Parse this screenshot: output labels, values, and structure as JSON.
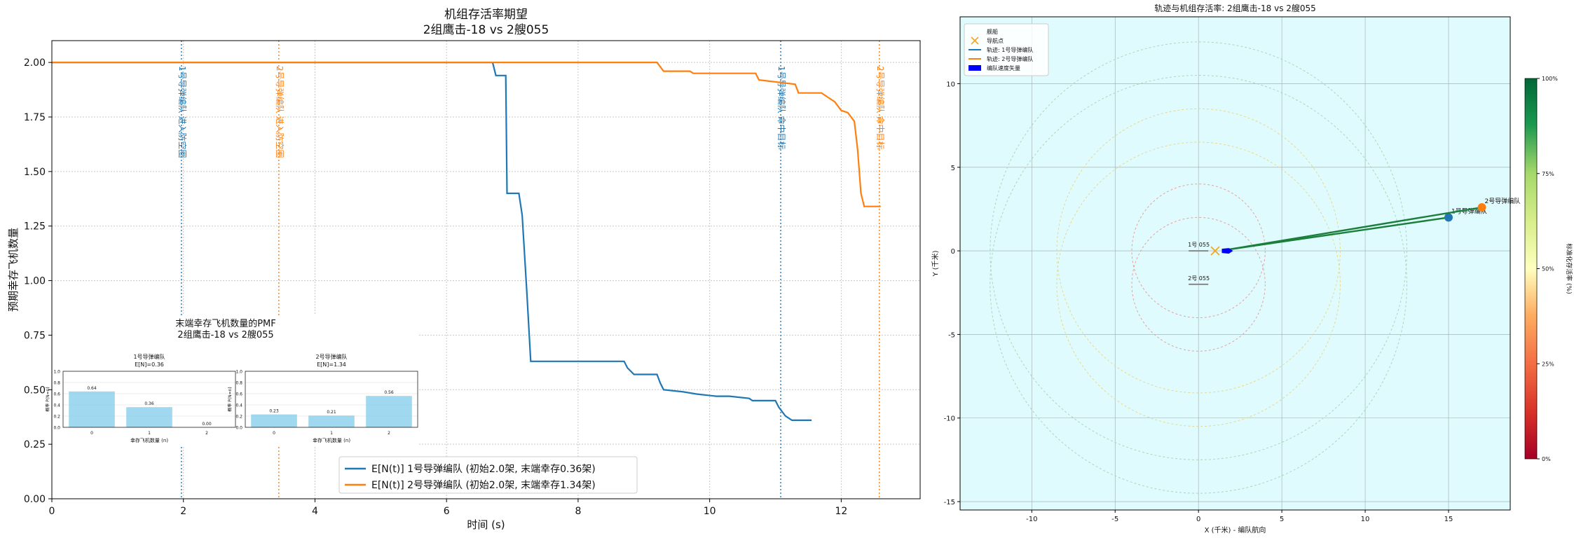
{
  "chart_data": [
    {
      "type": "line",
      "title": "机组存活率期望",
      "subtitle": "2组鹰击-18 vs 2艘055",
      "xlabel": "时间 (s)",
      "ylabel": "预期幸存飞机数量",
      "xlim": [
        0,
        13.2
      ],
      "ylim": [
        0,
        2.1
      ],
      "xticks": [
        0,
        2,
        4,
        6,
        8,
        10,
        12
      ],
      "yticks": [
        0.0,
        0.25,
        0.5,
        0.75,
        1.0,
        1.25,
        1.5,
        1.75,
        2.0
      ],
      "grid": true,
      "legend_placement": "lower-center",
      "series": [
        {
          "name": "E[N(t)] 1号导弹编队 (初始2.0架, 末端幸存0.36架)",
          "color": "#1f77b4",
          "x": [
            0,
            6.7,
            6.75,
            6.9,
            6.92,
            7.1,
            7.15,
            7.22,
            7.28,
            7.35,
            8.7,
            8.75,
            8.85,
            9.2,
            9.25,
            9.3,
            9.6,
            9.8,
            10.1,
            10.3,
            10.6,
            10.65,
            11.0,
            11.05,
            11.15,
            11.25,
            11.35,
            11.55
          ],
          "y": [
            2.0,
            2.0,
            1.94,
            1.94,
            1.4,
            1.4,
            1.3,
            0.95,
            0.63,
            0.63,
            0.63,
            0.6,
            0.57,
            0.57,
            0.53,
            0.5,
            0.49,
            0.48,
            0.47,
            0.47,
            0.46,
            0.45,
            0.45,
            0.42,
            0.38,
            0.36,
            0.36,
            0.36
          ]
        },
        {
          "name": "E[N(t)] 2号导弹编队 (初始2.0架, 末端幸存1.34架)",
          "color": "#ff7f0e",
          "x": [
            0,
            9.2,
            9.3,
            9.7,
            9.75,
            10.7,
            10.75,
            11.3,
            11.35,
            11.7,
            11.8,
            11.9,
            12.0,
            12.1,
            12.2,
            12.25,
            12.3,
            12.35,
            12.6
          ],
          "y": [
            2.0,
            2.0,
            1.96,
            1.96,
            1.95,
            1.95,
            1.92,
            1.9,
            1.86,
            1.86,
            1.84,
            1.82,
            1.78,
            1.77,
            1.73,
            1.6,
            1.4,
            1.34,
            1.34
          ]
        }
      ],
      "event_lines": [
        {
          "x": 1.97,
          "label": "1号导弹编队 进入防空圈",
          "color": "#1f77b4"
        },
        {
          "x": 3.45,
          "label": "2号导弹编队 进入防空圈",
          "color": "#ff7f0e"
        },
        {
          "x": 11.08,
          "label": "1号导弹编队 命中目标",
          "color": "#1f77b4"
        },
        {
          "x": 12.58,
          "label": "2号导弹编队 命中目标",
          "color": "#ff7f0e"
        }
      ]
    },
    {
      "type": "bar",
      "title": "末端幸存飞机数量的PMF",
      "subtitle": "2组鹰击-18 vs 2艘055",
      "panels": [
        {
          "title": "1号导弹编队",
          "subtitle": "E[N]=0.36",
          "categories": [
            "0",
            "1",
            "2"
          ],
          "values": [
            0.64,
            0.36,
            0.0
          ],
          "labels": [
            "0.64",
            "0.36",
            "0.00"
          ],
          "ylabel": "概率 P(N=n)",
          "xlabel": "幸存飞机数量 (n)",
          "ylim": [
            0,
            1.0
          ],
          "yticks": [
            "0.0",
            "0.2",
            "0.4",
            "0.6",
            "0.8",
            "1.0"
          ]
        },
        {
          "title": "2号导弹编队",
          "subtitle": "E[N]=1.34",
          "categories": [
            "0",
            "1",
            "2"
          ],
          "values": [
            0.23,
            0.21,
            0.56
          ],
          "labels": [
            "0.23",
            "0.21",
            "0.56"
          ],
          "ylabel": "概率 P(N=n)",
          "xlabel": "幸存飞机数量 (n)",
          "ylim": [
            0,
            1.0
          ],
          "yticks": [
            "0.0",
            "0.2",
            "0.4",
            "0.6",
            "0.8",
            "1.0"
          ]
        }
      ],
      "bar_color": "#87ceeb"
    },
    {
      "type": "scatter",
      "title": "轨迹与机组存活率: 2组鹰击-18 vs 2艘055",
      "xlabel": "X (千米) - 编队航向",
      "ylabel": "Y (千米)",
      "xlim": [
        -14.3,
        18.7
      ],
      "ylim": [
        -15.5,
        14
      ],
      "xticks": [
        -10,
        -5,
        0,
        5,
        10,
        15
      ],
      "yticks": [
        -15,
        -10,
        -5,
        0,
        5,
        10
      ],
      "background": "#e0fbfd",
      "legend_placement": "top-left",
      "legend": [
        {
          "label": "舰船",
          "kind": "none"
        },
        {
          "label": "导航点",
          "kind": "x-marker",
          "color": "#f5a623"
        },
        {
          "label": "轨迹: 1号导弹编队",
          "kind": "line",
          "color": "#1f77b4"
        },
        {
          "label": "轨迹: 2号导弹编队",
          "kind": "line",
          "color": "#ff7f0e"
        },
        {
          "label": "编队速度矢量",
          "kind": "patch",
          "color": "#0000ff"
        }
      ],
      "ships": [
        {
          "label": "1号 055",
          "x": 0,
          "y": 0
        },
        {
          "label": "2号 055",
          "x": 0,
          "y": -2
        }
      ],
      "waypoint": {
        "x": 1.0,
        "y": 0
      },
      "circles": [
        {
          "cx": 0,
          "cy": 0,
          "r": 4,
          "color": "#e6a0a0"
        },
        {
          "cx": 0,
          "cy": -2,
          "r": 4,
          "color": "#e6a0a0"
        },
        {
          "cx": 0,
          "cy": 0,
          "r": 8.5,
          "color": "#e8d88a"
        },
        {
          "cx": 0,
          "cy": -2,
          "r": 8.5,
          "color": "#e8d88a"
        },
        {
          "cx": 0,
          "cy": 0,
          "r": 12.5,
          "color": "#a8d8b8"
        },
        {
          "cx": 0,
          "cy": -2,
          "r": 12.5,
          "color": "#a8d8b8"
        }
      ],
      "trajectories": [
        {
          "name": "1号导弹编队",
          "color": "#1f77b4",
          "x": [
            1.6,
            15.0
          ],
          "y": [
            0.05,
            2.0
          ],
          "line_color": "#1a7f3a"
        },
        {
          "name": "2号导弹编队",
          "color": "#ff7f0e",
          "x": [
            1.6,
            17.0
          ],
          "y": [
            0.05,
            2.6
          ],
          "line_color": "#1a7f3a"
        }
      ],
      "velocity_vector": {
        "x": 1.4,
        "y": 0,
        "dx": 0.6,
        "dy": 0.05,
        "color": "#0000ff"
      },
      "colorbar": {
        "label": "标准化存活率 (%)",
        "ticks": [
          "0%",
          "25%",
          "50%",
          "75%",
          "100%"
        ],
        "colormap": "RdYlGn"
      }
    }
  ]
}
